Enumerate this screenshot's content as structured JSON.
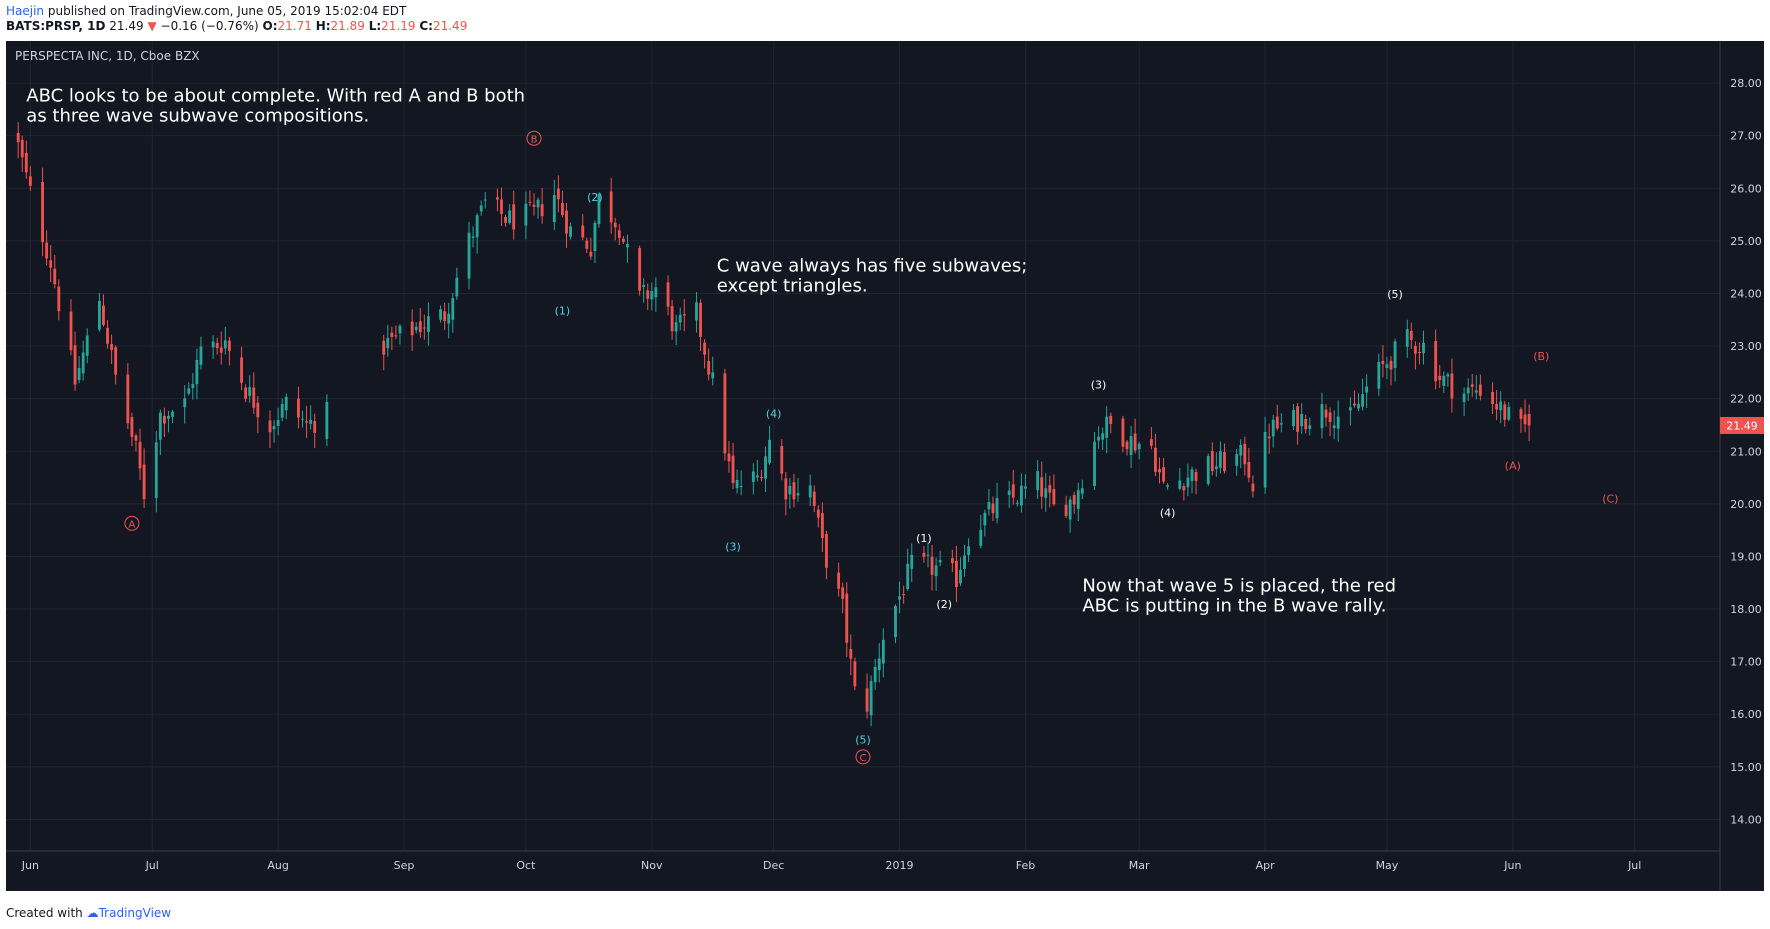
{
  "header": {
    "author": "Haejin",
    "published": "published on TradingView.com, June 05, 2019 15:02:04 EDT",
    "symbol_line": "BATS:PRSP, 1D",
    "last": "21.49",
    "change": "−0.16 (−0.76%)",
    "o_label": "O:",
    "o_val": "21.71",
    "h_label": "H:",
    "h_val": "21.89",
    "l_label": "L:",
    "l_val": "21.19",
    "c_label": "C:",
    "c_val": "21.49"
  },
  "footer": {
    "created_with": "Created with",
    "brand": "TradingView"
  },
  "colors": {
    "background": "#131722",
    "grid": "#1f2533",
    "up": "#26a69a",
    "down": "#ef5350",
    "wave_cyan": "#4dd0e1",
    "wave_white": "#ffffff",
    "abc_red": "#ef5350"
  },
  "chart_data": {
    "type": "candlestick",
    "title": "PERSPECTA INC, 1D, Cboe BZX",
    "last_price_label": "21.49",
    "ylim": [
      13.4,
      28.8
    ],
    "y_ticks": [
      "28.00",
      "27.00",
      "26.00",
      "25.00",
      "24.00",
      "23.00",
      "22.00",
      "21.00",
      "20.00",
      "19.00",
      "18.00",
      "17.00",
      "16.00",
      "15.00",
      "14.00"
    ],
    "x_ticks": [
      {
        "label": "Jun",
        "d": "2018-06-01"
      },
      {
        "label": "Jul",
        "d": "2018-07-01"
      },
      {
        "label": "Aug",
        "d": "2018-08-01"
      },
      {
        "label": "Sep",
        "d": "2018-09-01"
      },
      {
        "label": "Oct",
        "d": "2018-10-01"
      },
      {
        "label": "Nov",
        "d": "2018-11-01"
      },
      {
        "label": "Dec",
        "d": "2018-12-01"
      },
      {
        "label": "2019",
        "d": "2019-01-01"
      },
      {
        "label": "Feb",
        "d": "2019-02-01"
      },
      {
        "label": "Mar",
        "d": "2019-03-01"
      },
      {
        "label": "Apr",
        "d": "2019-04-01"
      },
      {
        "label": "May",
        "d": "2019-05-01"
      },
      {
        "label": "Jun",
        "d": "2019-06-01"
      },
      {
        "label": "Jul",
        "d": "2019-07-01"
      }
    ],
    "x_range": [
      "2018-05-26",
      "2019-07-22"
    ],
    "gap": [
      "2018-08-13",
      "2018-08-27"
    ],
    "close_path": [
      [
        "2018-05-29",
        26.8
      ],
      [
        "2018-06-01",
        25.9
      ],
      [
        "2018-06-06",
        24.6
      ],
      [
        "2018-06-12",
        22.3
      ],
      [
        "2018-06-18",
        23.9
      ],
      [
        "2018-06-22",
        22.4
      ],
      [
        "2018-06-27",
        21.0
      ],
      [
        "2018-06-29",
        20.2
      ],
      [
        "2018-07-03",
        21.7
      ],
      [
        "2018-07-09",
        21.9
      ],
      [
        "2018-07-13",
        22.9
      ],
      [
        "2018-07-19",
        23.1
      ],
      [
        "2018-07-24",
        22.2
      ],
      [
        "2018-07-30",
        21.5
      ],
      [
        "2018-08-03",
        21.9
      ],
      [
        "2018-08-08",
        21.5
      ],
      [
        "2018-08-13",
        21.7
      ],
      [
        "2018-08-27",
        23.0
      ],
      [
        "2018-09-05",
        23.4
      ],
      [
        "2018-09-11",
        23.6
      ],
      [
        "2018-09-17",
        25.0
      ],
      [
        "2018-09-21",
        25.7
      ],
      [
        "2018-09-27",
        25.4
      ],
      [
        "2018-10-03",
        25.5
      ],
      [
        "2018-10-08",
        25.9
      ],
      [
        "2018-10-12",
        25.2
      ],
      [
        "2018-10-17",
        24.9
      ],
      [
        "2018-10-19",
        25.8
      ],
      [
        "2018-10-24",
        25.3
      ],
      [
        "2018-10-29",
        23.9
      ],
      [
        "2018-11-02",
        24.1
      ],
      [
        "2018-11-07",
        23.3
      ],
      [
        "2018-11-12",
        23.6
      ],
      [
        "2018-11-16",
        22.3
      ],
      [
        "2018-11-21",
        20.3
      ],
      [
        "2018-11-27",
        20.5
      ],
      [
        "2018-11-30",
        21.2
      ],
      [
        "2018-12-04",
        20.3
      ],
      [
        "2018-12-10",
        20.3
      ],
      [
        "2018-12-13",
        19.2
      ],
      [
        "2018-12-18",
        18.0
      ],
      [
        "2018-12-21",
        16.4
      ],
      [
        "2018-12-24",
        16.2
      ],
      [
        "2018-12-28",
        17.5
      ],
      [
        "2019-01-04",
        18.8
      ],
      [
        "2019-01-09",
        18.8
      ],
      [
        "2019-01-15",
        18.6
      ],
      [
        "2019-01-18",
        19.4
      ],
      [
        "2019-01-24",
        19.9
      ],
      [
        "2019-01-29",
        20.1
      ],
      [
        "2019-02-04",
        20.4
      ],
      [
        "2019-02-08",
        19.9
      ],
      [
        "2019-02-13",
        20.1
      ],
      [
        "2019-02-19",
        21.4
      ],
      [
        "2019-02-22",
        21.5
      ],
      [
        "2019-02-27",
        21.2
      ],
      [
        "2019-03-04",
        21.1
      ],
      [
        "2019-03-07",
        20.3
      ],
      [
        "2019-03-12",
        20.5
      ],
      [
        "2019-03-18",
        20.7
      ],
      [
        "2019-03-22",
        20.8
      ],
      [
        "2019-03-27",
        20.9
      ],
      [
        "2019-03-29",
        20.4
      ],
      [
        "2019-04-02",
        21.4
      ],
      [
        "2019-04-09",
        21.6
      ],
      [
        "2019-04-16",
        21.8
      ],
      [
        "2019-04-22",
        21.6
      ],
      [
        "2019-04-26",
        22.2
      ],
      [
        "2019-05-01",
        22.7
      ],
      [
        "2019-05-06",
        23.1
      ],
      [
        "2019-05-10",
        23.0
      ],
      [
        "2019-05-14",
        22.4
      ],
      [
        "2019-05-20",
        22.1
      ],
      [
        "2019-05-24",
        22.2
      ],
      [
        "2019-05-29",
        21.8
      ],
      [
        "2019-06-03",
        21.4
      ],
      [
        "2019-06-05",
        21.49
      ]
    ],
    "annotations": [
      {
        "text": "ABC looks to be about complete. With red A and B both",
        "d": "2018-05-31",
        "y": 27.65,
        "kind": "note"
      },
      {
        "text": "as three wave subwave compositions.",
        "d": "2018-05-31",
        "y": 27.27,
        "kind": "note"
      },
      {
        "text": "C wave always has five subwaves;",
        "d": "2018-11-17",
        "y": 24.42,
        "kind": "note"
      },
      {
        "text": "except triangles.",
        "d": "2018-11-17",
        "y": 24.04,
        "kind": "note"
      },
      {
        "text": "Now that wave 5 is placed, the red",
        "d": "2019-02-15",
        "y": 18.33,
        "kind": "note"
      },
      {
        "text": "ABC is putting in the B wave rally.",
        "d": "2019-02-15",
        "y": 17.95,
        "kind": "note"
      }
    ],
    "wave_labels": [
      {
        "text": "A",
        "d": "2018-06-26",
        "y": 19.63,
        "kind": "circle"
      },
      {
        "text": "B",
        "d": "2018-10-03",
        "y": 26.95,
        "kind": "circle"
      },
      {
        "text": "C",
        "d": "2018-12-23",
        "y": 15.19,
        "kind": "circle"
      },
      {
        "text": "(1)",
        "d": "2018-10-10",
        "y": 23.68,
        "kind": "cyan"
      },
      {
        "text": "(2)",
        "d": "2018-10-18",
        "y": 25.83,
        "kind": "cyan"
      },
      {
        "text": "(3)",
        "d": "2018-11-21",
        "y": 19.19,
        "kind": "cyan"
      },
      {
        "text": "(4)",
        "d": "2018-12-01",
        "y": 21.72,
        "kind": "cyan"
      },
      {
        "text": "(5)",
        "d": "2018-12-23",
        "y": 15.52,
        "kind": "cyan"
      },
      {
        "text": "(1)",
        "d": "2019-01-07",
        "y": 19.35,
        "kind": "white"
      },
      {
        "text": "(2)",
        "d": "2019-01-12",
        "y": 18.1,
        "kind": "white"
      },
      {
        "text": "(3)",
        "d": "2019-02-19",
        "y": 22.27,
        "kind": "white"
      },
      {
        "text": "(4)",
        "d": "2019-03-08",
        "y": 19.84,
        "kind": "white"
      },
      {
        "text": "(5)",
        "d": "2019-05-03",
        "y": 23.99,
        "kind": "white"
      },
      {
        "text": "(A)",
        "d": "2019-06-01",
        "y": 20.73,
        "kind": "red"
      },
      {
        "text": "(B)",
        "d": "2019-06-08",
        "y": 22.81,
        "kind": "red"
      },
      {
        "text": "(C)",
        "d": "2019-06-25",
        "y": 20.1,
        "kind": "red"
      }
    ]
  }
}
